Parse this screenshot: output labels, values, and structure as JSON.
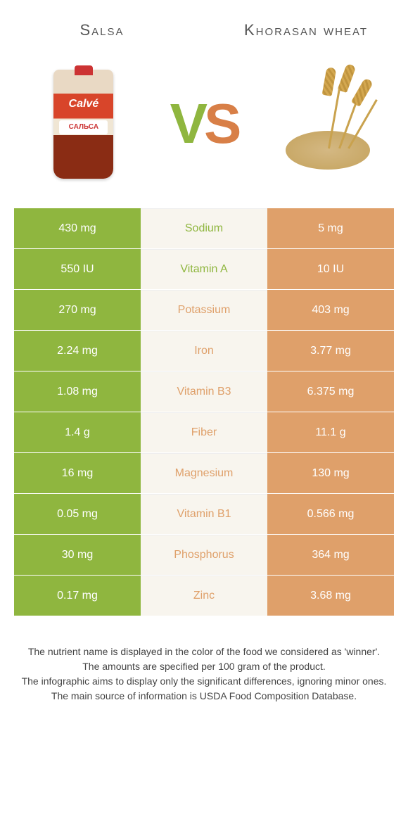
{
  "header": {
    "left": "Salsa",
    "right": "Khorasan wheat"
  },
  "vs": {
    "v": "V",
    "s": "S"
  },
  "colors": {
    "salsa": "#8fb63f",
    "wheat": "#dfa06a",
    "mid_bg": "#f8f5ee"
  },
  "salsa_label": "САЛЬСА",
  "rows": [
    {
      "left": "430 mg",
      "name": "Sodium",
      "right": "5 mg",
      "winner": "salsa"
    },
    {
      "left": "550 IU",
      "name": "Vitamin A",
      "right": "10 IU",
      "winner": "salsa"
    },
    {
      "left": "270 mg",
      "name": "Potassium",
      "right": "403 mg",
      "winner": "wheat"
    },
    {
      "left": "2.24 mg",
      "name": "Iron",
      "right": "3.77 mg",
      "winner": "wheat"
    },
    {
      "left": "1.08 mg",
      "name": "Vitamin B3",
      "right": "6.375 mg",
      "winner": "wheat"
    },
    {
      "left": "1.4 g",
      "name": "Fiber",
      "right": "11.1 g",
      "winner": "wheat"
    },
    {
      "left": "16 mg",
      "name": "Magnesium",
      "right": "130 mg",
      "winner": "wheat"
    },
    {
      "left": "0.05 mg",
      "name": "Vitamin B1",
      "right": "0.566 mg",
      "winner": "wheat"
    },
    {
      "left": "30 mg",
      "name": "Phosphorus",
      "right": "364 mg",
      "winner": "wheat"
    },
    {
      "left": "0.17 mg",
      "name": "Zinc",
      "right": "3.68 mg",
      "winner": "wheat"
    }
  ],
  "footer": {
    "l1": "The nutrient name is displayed in the color of the food we considered as 'winner'.",
    "l2": "The amounts are specified per 100 gram of the product.",
    "l3": "The infographic aims to display only the significant differences, ignoring minor ones.",
    "l4": "The main source of information is USDA Food Composition Database."
  }
}
